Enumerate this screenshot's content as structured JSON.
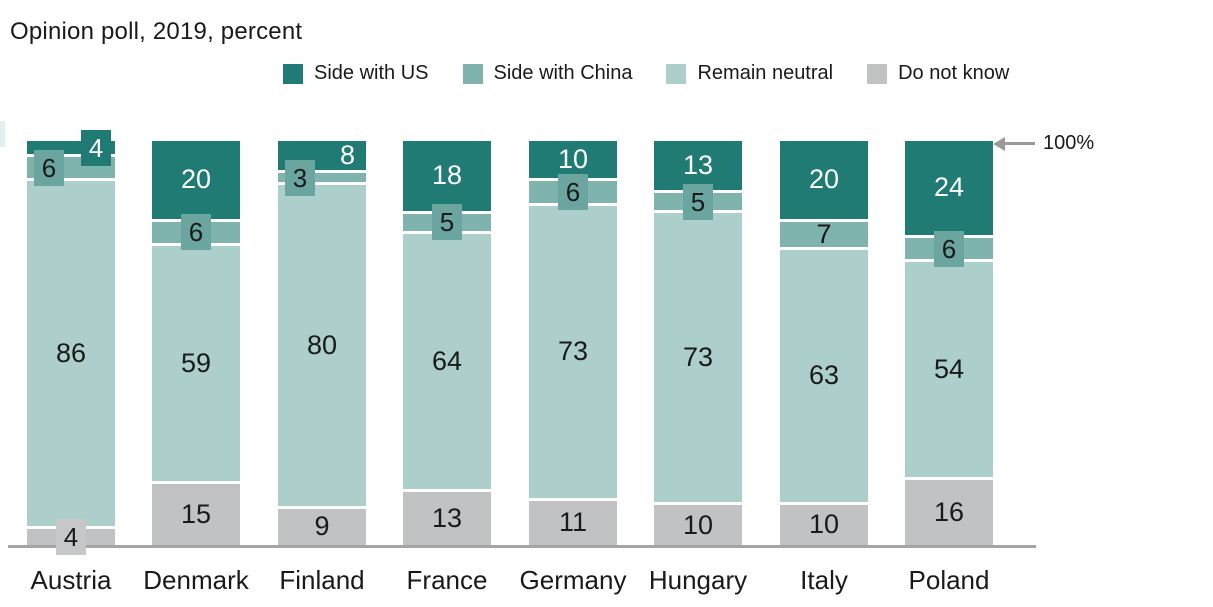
{
  "title": "Opinion poll, 2019, percent",
  "annotation": {
    "text": "100%"
  },
  "colors": {
    "side_us": "#1f7b74",
    "side_china": "#7fb4ae",
    "china_label_box": "#6aa69f",
    "remain_neutral": "#accfcb",
    "do_not_know": "#c1c2c4",
    "gray_label_box": "#c6c7c9",
    "axis": "#a5a5a7",
    "arrow": "#9a9a9c",
    "edge_artifact": "#e1efee",
    "text_dark": "#1a1a1a",
    "text_light": "#ffffff"
  },
  "chart_data": {
    "type": "bar",
    "stacked": true,
    "unit": "percent",
    "title": "Opinion poll, 2019, percent",
    "categories": [
      "Austria",
      "Denmark",
      "Finland",
      "France",
      "Germany",
      "Hungary",
      "Italy",
      "Poland"
    ],
    "series": [
      {
        "name": "Side with US",
        "color": "#1f7b74",
        "box_color": "#1f7b74",
        "text_color": "#ffffff",
        "values": [
          4,
          20,
          8,
          18,
          10,
          13,
          20,
          24
        ],
        "label_styles": [
          "box:25",
          "inside",
          "inside-right",
          "inside",
          "inside",
          "inside",
          "inside",
          "inside"
        ]
      },
      {
        "name": "Side with China",
        "color": "#7fb4ae",
        "box_color": "#6aa69f",
        "text_color": "#1a1a1a",
        "values": [
          6,
          6,
          3,
          5,
          6,
          5,
          7,
          6
        ],
        "label_styles": [
          "box:-22",
          "box",
          "box:-22",
          "box",
          "box",
          "box",
          "inside",
          "box"
        ]
      },
      {
        "name": "Remain neutral",
        "color": "#accfcb",
        "text_color": "#1a1a1a",
        "values": [
          86,
          59,
          80,
          64,
          73,
          73,
          63,
          54
        ],
        "label_styles": [
          "inside",
          "inside",
          "inside",
          "inside",
          "inside",
          "inside",
          "inside",
          "inside"
        ]
      },
      {
        "name": "Do not know",
        "color": "#c1c2c4",
        "box_color": "#c6c7c9",
        "text_color": "#1a1a1a",
        "values": [
          4,
          15,
          9,
          13,
          11,
          10,
          10,
          16
        ],
        "label_styles": [
          "box",
          "inside",
          "inside",
          "inside",
          "inside",
          "inside",
          "inside",
          "inside"
        ]
      }
    ],
    "ylim": [
      0,
      100
    ],
    "legend_position": "top",
    "grid": false,
    "annotations": [
      "100% arrow at top of bars"
    ]
  }
}
